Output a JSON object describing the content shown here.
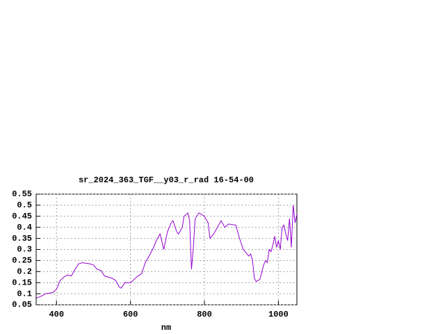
{
  "chart_data": {
    "type": "line",
    "title": "sr_2024_363_TGF__y03_r_rad 16-54-00",
    "x_label": "nm",
    "x": [
      346,
      360,
      370,
      390,
      400,
      410,
      420,
      430,
      440,
      450,
      460,
      470,
      490,
      500,
      510,
      520,
      530,
      550,
      560,
      570,
      575,
      585,
      600,
      620,
      630,
      640,
      660,
      670,
      680,
      690,
      700,
      710,
      715,
      725,
      730,
      740,
      745,
      755,
      760,
      765,
      770,
      775,
      785,
      800,
      810,
      815,
      825,
      835,
      845,
      855,
      865,
      885,
      895,
      905,
      915,
      920,
      925,
      930,
      935,
      940,
      950,
      960,
      965,
      970,
      975,
      980,
      985,
      990,
      995,
      1000,
      1005,
      1010,
      1015,
      1020,
      1025,
      1030,
      1035,
      1040,
      1045,
      1050
    ],
    "series": [
      {
        "color": "#9400d3",
        "values": [
          0.08,
          0.09,
          0.1,
          0.105,
          0.12,
          0.16,
          0.175,
          0.185,
          0.18,
          0.21,
          0.235,
          0.24,
          0.235,
          0.23,
          0.21,
          0.205,
          0.18,
          0.17,
          0.16,
          0.13,
          0.125,
          0.15,
          0.15,
          0.18,
          0.19,
          0.24,
          0.3,
          0.34,
          0.37,
          0.3,
          0.38,
          0.42,
          0.43,
          0.38,
          0.37,
          0.4,
          0.45,
          0.465,
          0.43,
          0.21,
          0.31,
          0.44,
          0.465,
          0.45,
          0.42,
          0.35,
          0.37,
          0.4,
          0.43,
          0.4,
          0.415,
          0.41,
          0.35,
          0.3,
          0.28,
          0.27,
          0.28,
          0.25,
          0.17,
          0.155,
          0.165,
          0.23,
          0.25,
          0.24,
          0.3,
          0.29,
          0.32,
          0.36,
          0.31,
          0.34,
          0.3,
          0.4,
          0.41,
          0.37,
          0.34,
          0.44,
          0.31,
          0.5,
          0.42,
          0.46
        ]
      }
    ],
    "xlim": [
      345,
      1050
    ],
    "ylim": [
      0.05,
      0.55
    ],
    "xticks": [
      400,
      600,
      800,
      1000
    ],
    "yticks": [
      0.05,
      0.1,
      0.15,
      0.2,
      0.25,
      0.3,
      0.35,
      0.4,
      0.45,
      0.5,
      0.55
    ],
    "grid": true
  }
}
